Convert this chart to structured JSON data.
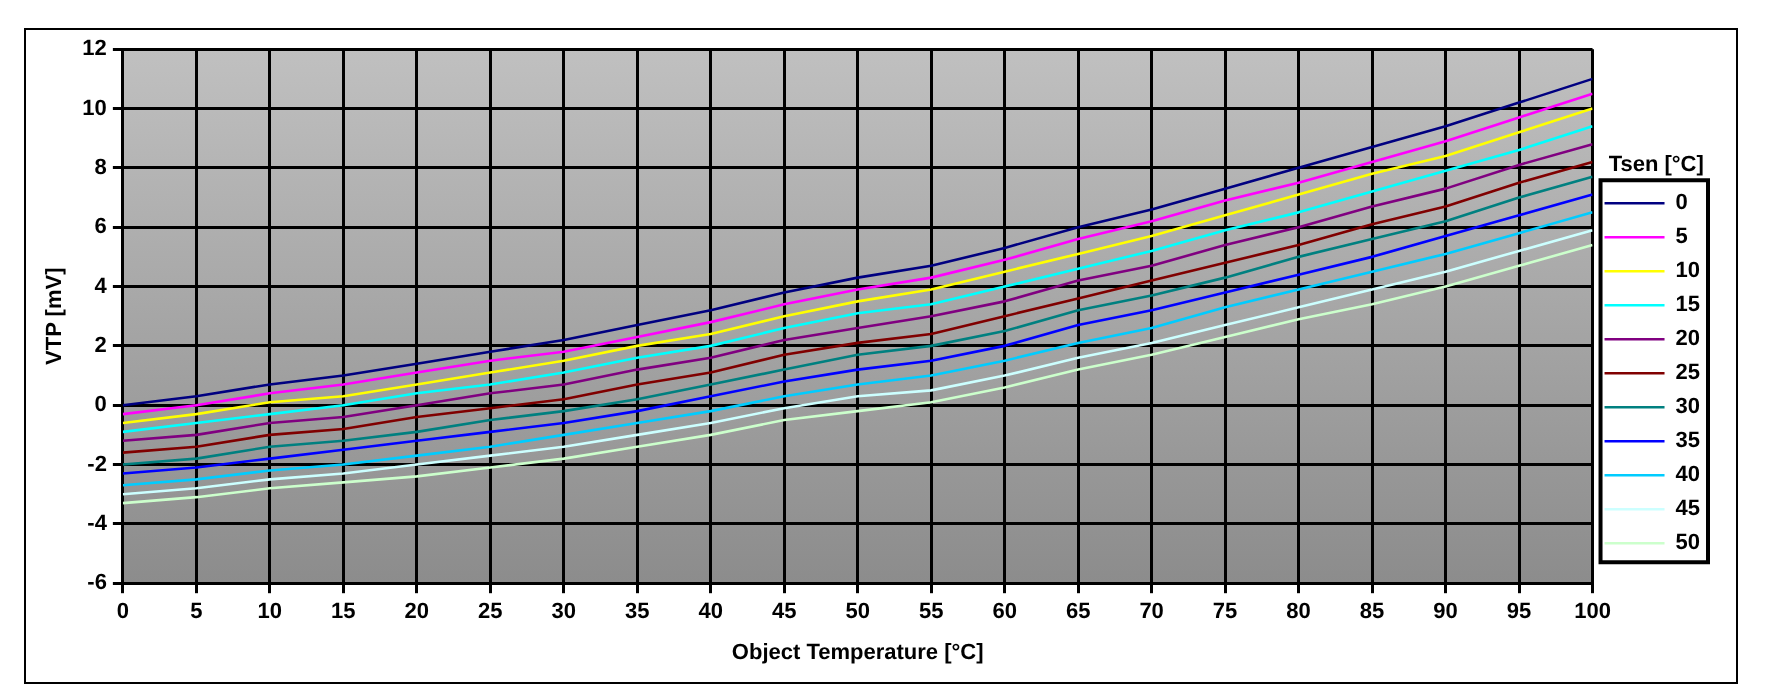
{
  "chart_data": {
    "type": "line",
    "xlabel": "Object Temperature [°C]",
    "ylabel": "VTP [mV]",
    "legend_title": "Tsen [°C]",
    "x": [
      0,
      5,
      10,
      15,
      20,
      25,
      30,
      35,
      40,
      45,
      50,
      55,
      60,
      65,
      70,
      75,
      80,
      85,
      90,
      95,
      100
    ],
    "xlim": [
      0,
      100
    ],
    "xticks": [
      0,
      5,
      10,
      15,
      20,
      25,
      30,
      35,
      40,
      45,
      50,
      55,
      60,
      65,
      70,
      75,
      80,
      85,
      90,
      95,
      100
    ],
    "ylim": [
      -6,
      12
    ],
    "yticks": [
      -6,
      -4,
      -2,
      0,
      2,
      4,
      6,
      8,
      10,
      12
    ],
    "grid": true,
    "legend": "right",
    "marker": "none",
    "line_style": "solid",
    "series": [
      {
        "name": "0",
        "color": "#000080",
        "values": [
          0.0,
          0.3,
          0.7,
          1.0,
          1.4,
          1.8,
          2.2,
          2.7,
          3.2,
          3.8,
          4.3,
          4.7,
          5.3,
          6.0,
          6.6,
          7.3,
          8.0,
          8.7,
          9.4,
          10.2,
          11.0
        ]
      },
      {
        "name": "5",
        "color": "#ff00ff",
        "values": [
          -0.3,
          0.0,
          0.4,
          0.7,
          1.1,
          1.5,
          1.8,
          2.3,
          2.8,
          3.4,
          3.9,
          4.3,
          4.9,
          5.6,
          6.2,
          6.9,
          7.5,
          8.2,
          8.9,
          9.7,
          10.5
        ]
      },
      {
        "name": "10",
        "color": "#ffff00",
        "values": [
          -0.6,
          -0.3,
          0.1,
          0.3,
          0.7,
          1.1,
          1.5,
          2.0,
          2.4,
          3.0,
          3.5,
          3.9,
          4.5,
          5.1,
          5.7,
          6.4,
          7.1,
          7.8,
          8.4,
          9.2,
          10.0
        ]
      },
      {
        "name": "15",
        "color": "#00ffff",
        "values": [
          -0.9,
          -0.6,
          -0.3,
          0.0,
          0.4,
          0.7,
          1.1,
          1.6,
          2.0,
          2.6,
          3.1,
          3.4,
          4.0,
          4.6,
          5.2,
          5.9,
          6.5,
          7.2,
          7.9,
          8.6,
          9.4
        ]
      },
      {
        "name": "20",
        "color": "#800080",
        "values": [
          -1.2,
          -1.0,
          -0.6,
          -0.4,
          0.0,
          0.4,
          0.7,
          1.2,
          1.6,
          2.2,
          2.6,
          3.0,
          3.5,
          4.2,
          4.7,
          5.4,
          6.0,
          6.7,
          7.3,
          8.1,
          8.8
        ]
      },
      {
        "name": "25",
        "color": "#800000",
        "values": [
          -1.6,
          -1.4,
          -1.0,
          -0.8,
          -0.4,
          -0.1,
          0.2,
          0.7,
          1.1,
          1.7,
          2.1,
          2.4,
          3.0,
          3.6,
          4.2,
          4.8,
          5.4,
          6.1,
          6.7,
          7.5,
          8.2
        ]
      },
      {
        "name": "30",
        "color": "#008080",
        "values": [
          -2.0,
          -1.8,
          -1.4,
          -1.2,
          -0.9,
          -0.5,
          -0.2,
          0.2,
          0.7,
          1.2,
          1.7,
          2.0,
          2.5,
          3.2,
          3.7,
          4.3,
          5.0,
          5.6,
          6.2,
          7.0,
          7.7
        ]
      },
      {
        "name": "35",
        "color": "#0000ff",
        "values": [
          -2.3,
          -2.1,
          -1.8,
          -1.5,
          -1.2,
          -0.9,
          -0.6,
          -0.2,
          0.3,
          0.8,
          1.2,
          1.5,
          2.0,
          2.7,
          3.2,
          3.8,
          4.4,
          5.0,
          5.7,
          6.4,
          7.1
        ]
      },
      {
        "name": "40",
        "color": "#00ccff",
        "values": [
          -2.7,
          -2.5,
          -2.2,
          -2.0,
          -1.7,
          -1.4,
          -1.0,
          -0.6,
          -0.2,
          0.3,
          0.7,
          1.0,
          1.5,
          2.1,
          2.6,
          3.3,
          3.9,
          4.5,
          5.1,
          5.8,
          6.5
        ]
      },
      {
        "name": "45",
        "color": "#ccffff",
        "values": [
          -3.0,
          -2.8,
          -2.5,
          -2.3,
          -2.0,
          -1.7,
          -1.4,
          -1.0,
          -0.6,
          -0.1,
          0.3,
          0.5,
          1.0,
          1.6,
          2.1,
          2.7,
          3.3,
          3.9,
          4.5,
          5.2,
          5.9
        ]
      },
      {
        "name": "50",
        "color": "#ccffcc",
        "values": [
          -3.3,
          -3.1,
          -2.8,
          -2.6,
          -2.4,
          -2.1,
          -1.8,
          -1.4,
          -1.0,
          -0.5,
          -0.2,
          0.1,
          0.6,
          1.2,
          1.7,
          2.3,
          2.9,
          3.4,
          4.0,
          4.7,
          5.4
        ]
      }
    ]
  }
}
